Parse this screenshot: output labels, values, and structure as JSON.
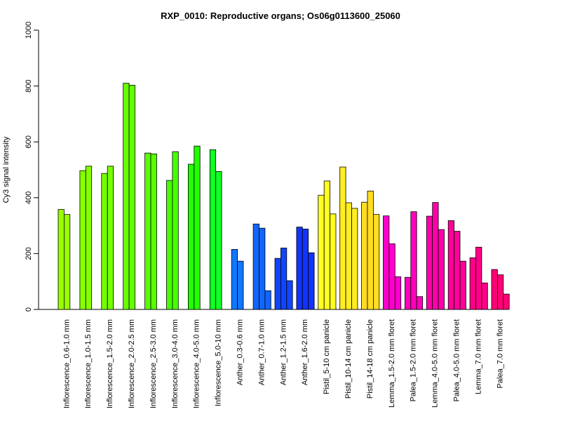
{
  "chart_data": {
    "type": "bar",
    "title": "RXP_0010: Reproductive organs; Os06g0113600_25060",
    "xlabel": "",
    "ylabel": "Cy3 signal intensity",
    "ylim": [
      0,
      1000
    ],
    "yticks": [
      0,
      200,
      400,
      600,
      800,
      1000
    ],
    "grid": false,
    "legend": "none",
    "groups": [
      {
        "label": "Inflorescence_0.6-1.0 mm",
        "color": "#99FF00",
        "values": [
          358,
          340
        ]
      },
      {
        "label": "Inflorescence_1.0-1.5 mm",
        "color": "#88FF00",
        "values": [
          497,
          513
        ]
      },
      {
        "label": "Inflorescence_1.5-2.0 mm",
        "color": "#77FF00",
        "values": [
          487,
          513
        ]
      },
      {
        "label": "Inflorescence_2.0-2.5 mm",
        "color": "#66FF00",
        "values": [
          810,
          803
        ]
      },
      {
        "label": "Inflorescence_2.5-3.0 mm",
        "color": "#55FF00",
        "values": [
          560,
          557
        ]
      },
      {
        "label": "Inflorescence_3.0-4.0 mm",
        "color": "#44FF00",
        "values": [
          462,
          565
        ]
      },
      {
        "label": "Inflorescence_4.0-5.0 mm",
        "color": "#22FF00",
        "values": [
          520,
          585
        ]
      },
      {
        "label": "Inflorescence_5.0-10 mm",
        "color": "#11FF22",
        "values": [
          572,
          494
        ]
      },
      {
        "label": "Anther_0.3-0.6 mm",
        "color": "#1177FF",
        "values": [
          215,
          173
        ]
      },
      {
        "label": "Anther_0.7-1.0 mm",
        "color": "#1166FF",
        "values": [
          306,
          291,
          67
        ]
      },
      {
        "label": "Anther_1.2-1.5 mm",
        "color": "#1144FF",
        "values": [
          183,
          220,
          103
        ]
      },
      {
        "label": "Anther_1.6-2.0 mm",
        "color": "#1133FF",
        "values": [
          295,
          288,
          203
        ]
      },
      {
        "label": "Pistil_5-10 cm panicle",
        "color": "#FFFF22",
        "values": [
          409,
          460,
          342
        ]
      },
      {
        "label": "Pistil_10-14 cm panicle",
        "color": "#FFEE22",
        "values": [
          510,
          382,
          362
        ]
      },
      {
        "label": "Pistil_14-18 cm panicle",
        "color": "#FFDD22",
        "values": [
          384,
          424,
          340
        ]
      },
      {
        "label": "Lemma_1.5-2.0 mm floret",
        "color": "#FF00CC",
        "values": [
          335,
          235,
          117
        ]
      },
      {
        "label": "Palea_1.5-2.0 mm floret",
        "color": "#FF00BB",
        "values": [
          115,
          350,
          46
        ]
      },
      {
        "label": "Lemma_4.0-5.0 mm floret",
        "color": "#FF00AA",
        "values": [
          334,
          383,
          286
        ]
      },
      {
        "label": "Palea_4.0-5.0 mm floret",
        "color": "#FF0099",
        "values": [
          318,
          280,
          173
        ]
      },
      {
        "label": "Lemma_7.0 mm floret",
        "color": "#FF0088",
        "values": [
          185,
          223,
          95
        ]
      },
      {
        "label": "Palea_7.0 mm floret",
        "color": "#FF0077",
        "values": [
          143,
          124,
          55
        ]
      }
    ]
  }
}
